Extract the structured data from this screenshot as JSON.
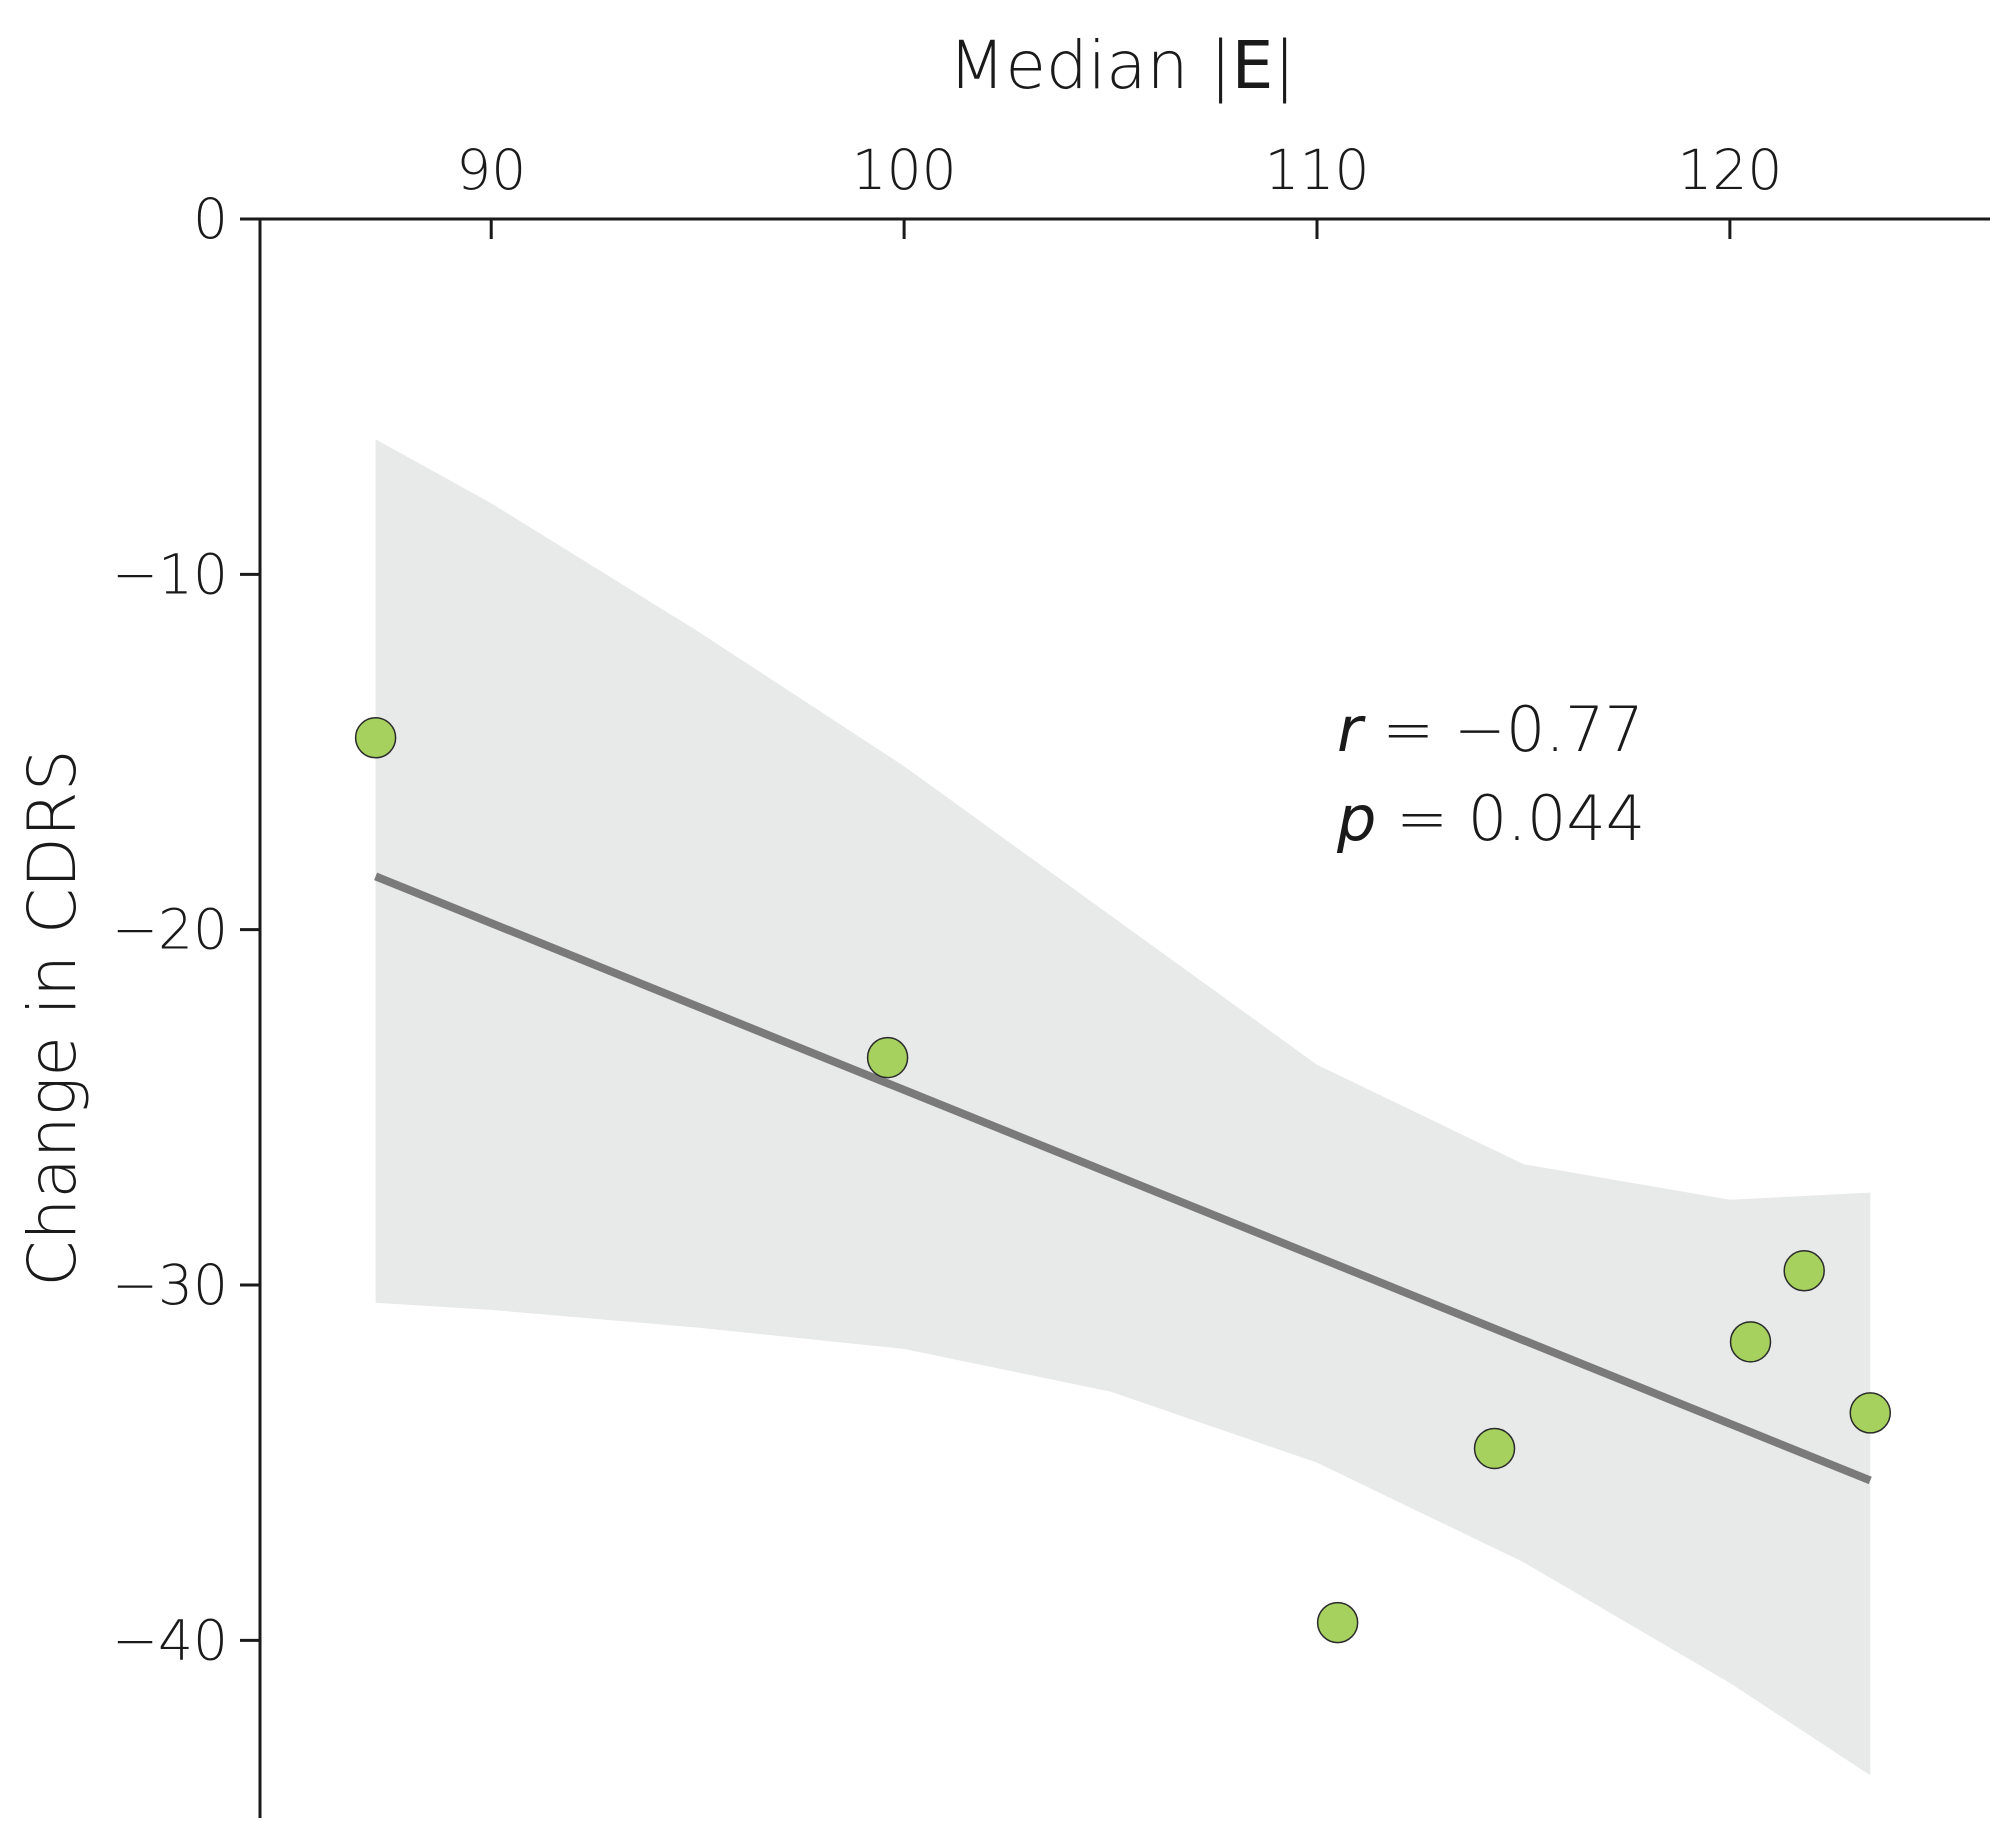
{
  "chart_data": {
    "type": "scatter",
    "xlabel_prefix": "Median |",
    "xlabel_bold": "E",
    "xlabel_suffix": "|",
    "ylabel": "Change in CDRS",
    "x_axis_position": "top",
    "xlim": [
      84.4,
      126.3
    ],
    "ylim": [
      -45.0,
      0
    ],
    "x_ticks": [
      90,
      100,
      110,
      120
    ],
    "x_tick_labels": [
      "90",
      "100",
      "110",
      "120"
    ],
    "y_ticks": [
      0,
      -10,
      -20,
      -30,
      -40
    ],
    "y_tick_labels": [
      "0",
      "−10",
      "−20",
      "−30",
      "−40"
    ],
    "grid": false,
    "points": [
      {
        "x": 87.2,
        "y": -14.6
      },
      {
        "x": 99.6,
        "y": -23.6
      },
      {
        "x": 110.5,
        "y": -39.5
      },
      {
        "x": 114.3,
        "y": -34.6
      },
      {
        "x": 120.5,
        "y": -31.6
      },
      {
        "x": 121.8,
        "y": -29.6
      },
      {
        "x": 123.4,
        "y": -33.6
      }
    ],
    "fit_line": [
      {
        "x": 87.2,
        "y": -18.5
      },
      {
        "x": 123.4,
        "y": -35.5
      }
    ],
    "confidence_band": {
      "upper": [
        {
          "x": 87.2,
          "y": -6.2
        },
        {
          "x": 90,
          "y": -8.0
        },
        {
          "x": 95,
          "y": -11.6
        },
        {
          "x": 100,
          "y": -15.4
        },
        {
          "x": 105,
          "y": -19.6
        },
        {
          "x": 110,
          "y": -23.8
        },
        {
          "x": 115,
          "y": -26.6
        },
        {
          "x": 120,
          "y": -27.6
        },
        {
          "x": 123.4,
          "y": -27.4
        }
      ],
      "lower": [
        {
          "x": 87.2,
          "y": -30.5
        },
        {
          "x": 90,
          "y": -30.7
        },
        {
          "x": 95,
          "y": -31.2
        },
        {
          "x": 100,
          "y": -31.8
        },
        {
          "x": 105,
          "y": -33.0
        },
        {
          "x": 110,
          "y": -35.0
        },
        {
          "x": 115,
          "y": -37.8
        },
        {
          "x": 120,
          "y": -41.2
        },
        {
          "x": 123.4,
          "y": -43.8
        }
      ]
    },
    "annotations": {
      "r_symbol": "r",
      "r_value": " = −0.77",
      "p_symbol": "p",
      "p_value": " = 0.044"
    },
    "colors": {
      "point_fill": "#a6d15e",
      "point_stroke": "#2b2b2b",
      "line": "#7a7a7a",
      "band": "#e8e9e9",
      "axis": "#1a1a1a"
    }
  }
}
